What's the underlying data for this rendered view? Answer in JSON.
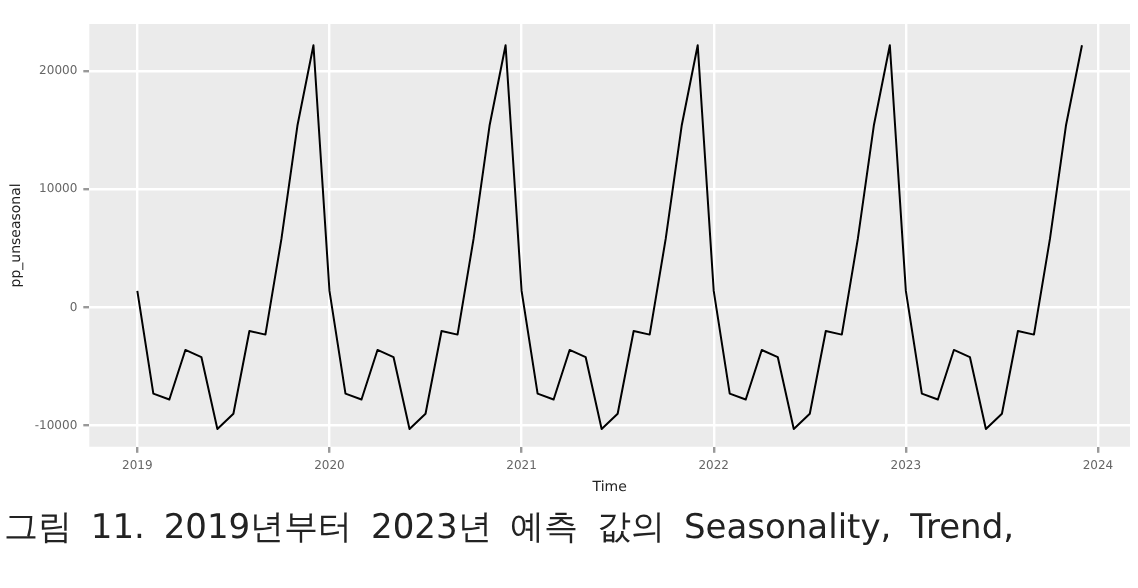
{
  "chart_data": {
    "type": "line",
    "xlabel": "Time",
    "ylabel": "pp_unseasonal",
    "x": [
      "2019-01",
      "2019-02",
      "2019-03",
      "2019-04",
      "2019-05",
      "2019-06",
      "2019-07",
      "2019-08",
      "2019-09",
      "2019-10",
      "2019-11",
      "2019-12",
      "2020-01",
      "2020-02",
      "2020-03",
      "2020-04",
      "2020-05",
      "2020-06",
      "2020-07",
      "2020-08",
      "2020-09",
      "2020-10",
      "2020-11",
      "2020-12",
      "2021-01",
      "2021-02",
      "2021-03",
      "2021-04",
      "2021-05",
      "2021-06",
      "2021-07",
      "2021-08",
      "2021-09",
      "2021-10",
      "2021-11",
      "2021-12",
      "2022-01",
      "2022-02",
      "2022-03",
      "2022-04",
      "2022-05",
      "2022-06",
      "2022-07",
      "2022-08",
      "2022-09",
      "2022-10",
      "2022-11",
      "2022-12",
      "2023-01",
      "2023-02",
      "2023-03",
      "2023-04",
      "2023-05",
      "2023-06",
      "2023-07",
      "2023-08",
      "2023-09",
      "2023-10",
      "2023-11",
      "2023-12"
    ],
    "series": [
      {
        "color": "#000000",
        "values": [
          1400,
          -7300,
          -7800,
          -3600,
          -4200,
          -10300,
          -9000,
          -2000,
          -2300,
          5800,
          15400,
          22200,
          1400,
          -7300,
          -7800,
          -3600,
          -4200,
          -10300,
          -9000,
          -2000,
          -2300,
          5800,
          15400,
          22200,
          1400,
          -7300,
          -7800,
          -3600,
          -4200,
          -10300,
          -9000,
          -2000,
          -2300,
          5800,
          15400,
          22200,
          1400,
          -7300,
          -7800,
          -3600,
          -4200,
          -10300,
          -9000,
          -2000,
          -2300,
          5800,
          15400,
          22200,
          1400,
          -7300,
          -7800,
          -3600,
          -4200,
          -10300,
          -9000,
          -2000,
          -2300,
          5800,
          15400,
          22200
        ]
      }
    ],
    "xlim": [
      "2018-10",
      "2024-03"
    ],
    "xticks": [
      "2019",
      "2020",
      "2021",
      "2022",
      "2023",
      "2024"
    ],
    "ylim": [
      -11800,
      24000
    ],
    "yticks": [
      -10000,
      0,
      10000,
      20000
    ],
    "grid": true,
    "legend": false,
    "marker": "none",
    "line_style": "solid",
    "annotations": [
      "그림 11. 2019년부터 2023년 예측 값의 Seasonality, Trend,"
    ]
  }
}
